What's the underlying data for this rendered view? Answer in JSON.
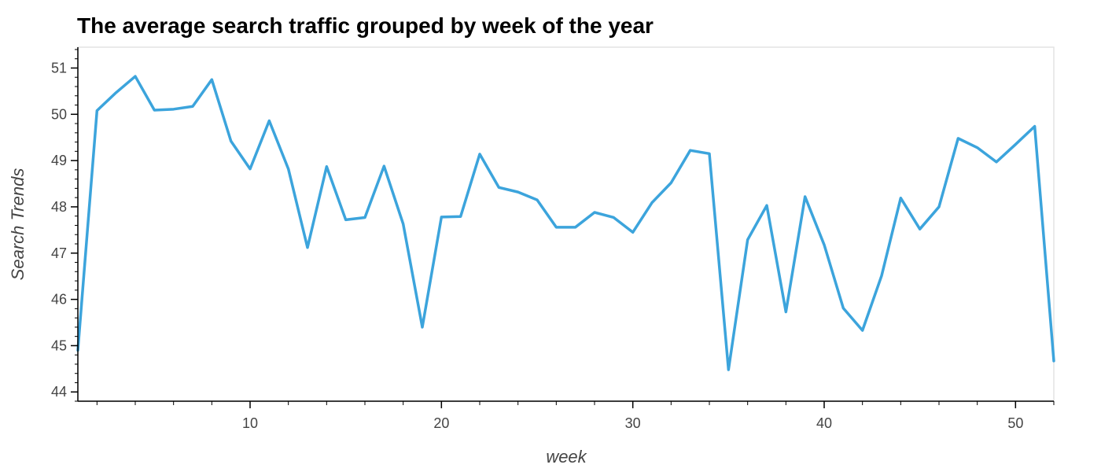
{
  "chart_data": {
    "type": "line",
    "title": "The average search traffic grouped by week of the year",
    "xlabel": "week",
    "ylabel": "Search Trends",
    "xlim": [
      1,
      52
    ],
    "ylim": [
      43.8,
      51.45
    ],
    "x_ticks": [
      10,
      20,
      30,
      40,
      50
    ],
    "y_ticks": [
      44,
      45,
      46,
      47,
      48,
      49,
      50,
      51
    ],
    "grid": false,
    "legend": "none",
    "series": [
      {
        "color": "#3ca4dc",
        "x": [
          1,
          2,
          3,
          4,
          5,
          6,
          7,
          8,
          9,
          10,
          11,
          12,
          13,
          14,
          15,
          16,
          17,
          18,
          19,
          20,
          21,
          22,
          23,
          24,
          25,
          26,
          27,
          28,
          29,
          30,
          31,
          32,
          33,
          34,
          35,
          36,
          37,
          38,
          39,
          40,
          41,
          42,
          43,
          44,
          45,
          46,
          47,
          48,
          49,
          50,
          51,
          52
        ],
        "y": [
          44.9,
          50.08,
          50.47,
          50.82,
          50.09,
          50.11,
          50.17,
          50.75,
          49.42,
          48.82,
          49.86,
          48.82,
          47.12,
          48.87,
          47.72,
          47.77,
          48.88,
          47.63,
          45.4,
          47.78,
          47.79,
          49.14,
          48.42,
          48.32,
          48.15,
          47.56,
          47.56,
          47.88,
          47.77,
          47.45,
          48.09,
          48.52,
          49.22,
          49.15,
          44.48,
          47.29,
          48.03,
          45.73,
          48.22,
          47.18,
          45.81,
          45.33,
          46.51,
          48.19,
          47.52,
          48.0,
          49.48,
          49.28,
          48.97,
          49.35,
          49.74,
          44.67
        ]
      }
    ]
  }
}
